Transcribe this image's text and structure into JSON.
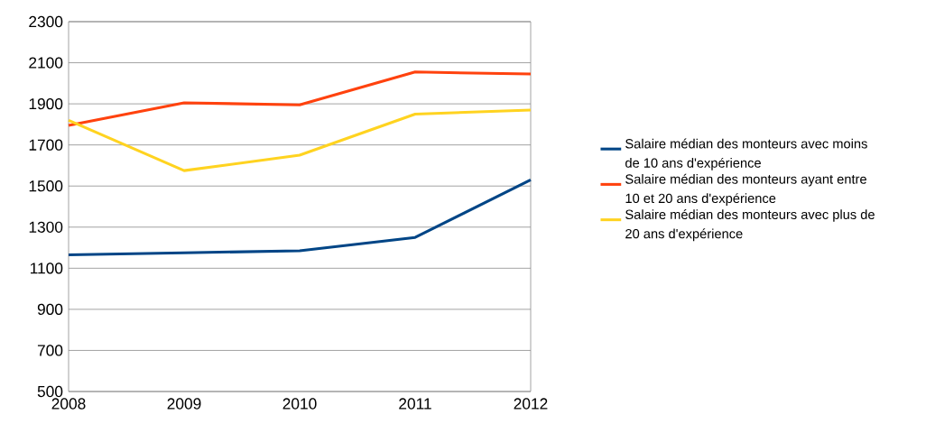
{
  "chart_data": {
    "type": "line",
    "x": [
      2008,
      2009,
      2010,
      2011,
      2012
    ],
    "series": [
      {
        "name": "Salaire médian des monteurs avec moins de 10 ans d'expérience",
        "color": "#004586",
        "values": [
          1165,
          1175,
          1185,
          1250,
          1530
        ]
      },
      {
        "name": "Salaire médian des monteurs ayant entre 10 et 20 ans d'expérience",
        "color": "#ff420e",
        "values": [
          1795,
          1905,
          1895,
          2055,
          2045
        ]
      },
      {
        "name": "Salaire médian des monteurs avec plus de 20 ans d'expérience",
        "color": "#ffd320",
        "values": [
          1820,
          1575,
          1650,
          1850,
          1870
        ]
      }
    ],
    "xlim": [
      2008,
      2012
    ],
    "xticks": [
      2008,
      2009,
      2010,
      2011,
      2012
    ],
    "ylim": [
      500,
      2300
    ],
    "yticks": [
      500,
      700,
      900,
      1100,
      1300,
      1500,
      1700,
      1900,
      2100,
      2300
    ],
    "grid": "y",
    "legend": "right",
    "marker": "none",
    "line_style": "solid"
  }
}
